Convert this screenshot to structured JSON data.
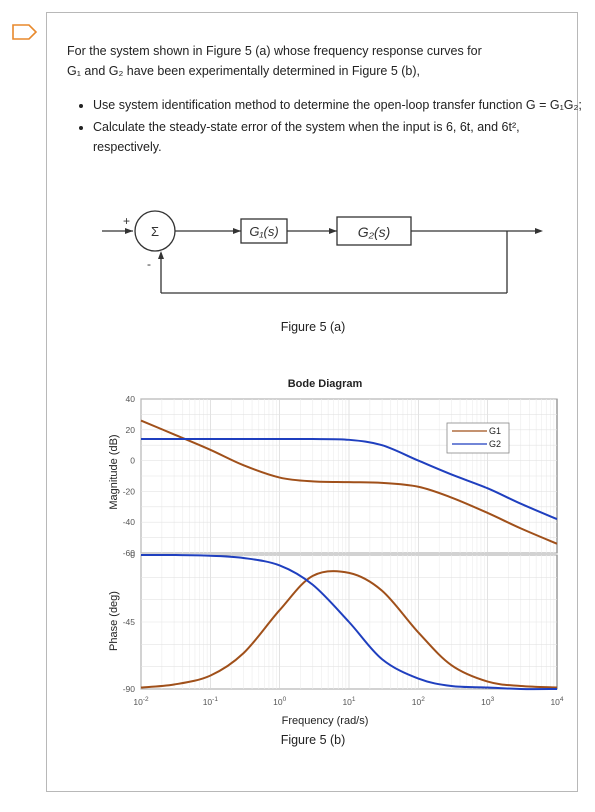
{
  "icons": {
    "tag": "tag-outline-icon"
  },
  "problem": {
    "intro_a": "For the system shown in Figure 5 (a) whose frequency response curves for",
    "intro_b": "G₁ and G₂ have been experimentally determined in Figure 5 (b),",
    "bullets": [
      "Use system identification method to determine the open-loop transfer function G = G₁G₂;",
      "Calculate the steady-state error of the system when the input is 6, 6t, and 6t², respectively."
    ]
  },
  "block_diagram": {
    "plus": "+",
    "minus": "-",
    "summer": "Σ",
    "g1": "G₁(s)",
    "g2": "G₂(s)",
    "caption": "Figure 5 (a)"
  },
  "bode": {
    "title": "Bode Diagram",
    "legend": [
      "G1",
      "G2"
    ],
    "colors": {
      "G1": "#a0501a",
      "G2": "#1f3fbf"
    },
    "mag_ylabel": "Magnitude (dB)",
    "phase_ylabel": "Phase (deg)",
    "xlabel": "Frequency  (rad/s)",
    "caption": "Figure 5 (b)"
  },
  "chart_data": [
    {
      "type": "line",
      "title": "Bode Diagram",
      "ylabel": "Magnitude (dB)",
      "xscale": "log",
      "xlim": [
        0.01,
        10000
      ],
      "ylim": [
        -60,
        40
      ],
      "yticks": [
        40,
        20,
        0,
        -20,
        -40,
        -60
      ],
      "grid": true,
      "legend_position": "top-right",
      "x": [
        0.01,
        0.03,
        0.1,
        0.3,
        1,
        3,
        10,
        30,
        100,
        300,
        1000,
        3000,
        10000
      ],
      "series": [
        {
          "name": "G1",
          "values": [
            26,
            17,
            7,
            -3,
            -11,
            -13.5,
            -14,
            -14.5,
            -17,
            -24,
            -34,
            -44,
            -54
          ]
        },
        {
          "name": "G2",
          "values": [
            14,
            14,
            14,
            14,
            14,
            14,
            13.5,
            10,
            0,
            -9,
            -18,
            -28,
            -38
          ]
        }
      ]
    },
    {
      "type": "line",
      "ylabel": "Phase (deg)",
      "xlabel": "Frequency  (rad/s)",
      "xscale": "log",
      "xlim": [
        0.01,
        10000
      ],
      "ylim": [
        -90,
        0
      ],
      "yticks": [
        0,
        -45,
        -90
      ],
      "xticklabels": [
        "10-2",
        "10-1",
        "100",
        "101",
        "102",
        "103",
        "104"
      ],
      "grid": true,
      "x": [
        0.01,
        0.03,
        0.1,
        0.3,
        1,
        3,
        10,
        30,
        100,
        300,
        1000,
        3000,
        10000
      ],
      "series": [
        {
          "name": "G1",
          "values": [
            -89,
            -87,
            -81,
            -66,
            -37,
            -14,
            -12,
            -24,
            -52,
            -74,
            -85,
            -88,
            -89
          ]
        },
        {
          "name": "G2",
          "values": [
            0,
            0,
            -0.5,
            -2,
            -7,
            -20,
            -45,
            -70,
            -83,
            -88,
            -89,
            -90,
            -90
          ]
        }
      ]
    }
  ]
}
